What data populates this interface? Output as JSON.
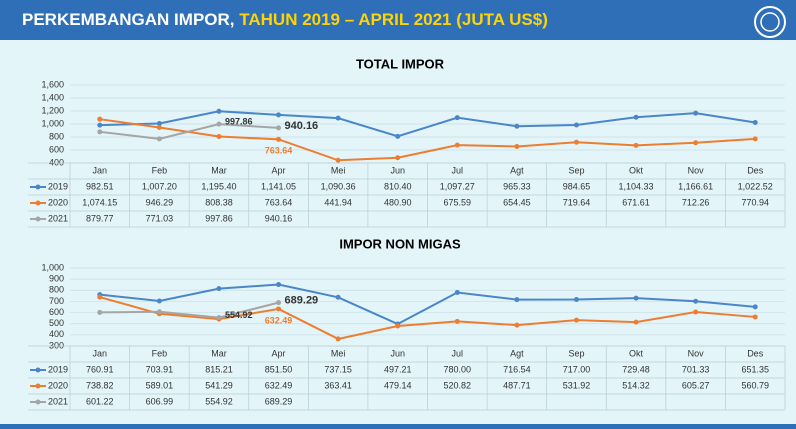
{
  "header": {
    "title_part1": "PERKEMBANGAN IMPOR, ",
    "title_part2": "TAHUN 2019 – APRIL 2021 (JUTA US$)"
  },
  "chart_data": [
    {
      "type": "line",
      "title": "TOTAL IMPOR",
      "categories": [
        "Jan",
        "Feb",
        "Mar",
        "Apr",
        "Mei",
        "Jun",
        "Jul",
        "Agt",
        "Sep",
        "Okt",
        "Nov",
        "Des"
      ],
      "ylim": [
        400,
        1600
      ],
      "yticks": [
        400,
        600,
        800,
        {
          "value": 1000,
          "label": "1,000"
        },
        {
          "value": 1200,
          "label": "1,200"
        },
        {
          "value": 1400,
          "label": "1,400"
        },
        {
          "value": 1600,
          "label": "1,600"
        }
      ],
      "grid": true,
      "series": [
        {
          "name": "2019",
          "color": "#4a86c8",
          "values": [
            982.51,
            1007.2,
            1195.4,
            1141.05,
            1090.36,
            810.4,
            1097.27,
            965.33,
            984.65,
            1104.33,
            1166.61,
            1022.52
          ],
          "value_labels": [
            "982.51",
            "1,007.20",
            "1,195.40",
            "1,141.05",
            "1,090.36",
            "810.40",
            "1,097.27",
            "965.33",
            "984.65",
            "1,104.33",
            "1,166.61",
            "1,022.52"
          ]
        },
        {
          "name": "2020",
          "color": "#ed7d31",
          "values": [
            1074.15,
            946.29,
            808.38,
            763.64,
            441.94,
            480.9,
            675.59,
            654.45,
            719.64,
            671.61,
            712.26,
            770.94
          ],
          "value_labels": [
            "1,074.15",
            "946.29",
            "808.38",
            "763.64",
            "441.94",
            "480.90",
            "675.59",
            "654.45",
            "719.64",
            "671.61",
            "712.26",
            "770.94"
          ],
          "label_points": [
            3
          ]
        },
        {
          "name": "2021",
          "color": "#a5a5a5",
          "values": [
            879.77,
            771.03,
            997.86,
            940.16,
            null,
            null,
            null,
            null,
            null,
            null,
            null,
            null
          ],
          "value_labels": [
            "879.77",
            "771.03",
            "997.86",
            "940.16",
            null,
            null,
            null,
            null,
            null,
            null,
            null,
            null
          ],
          "label_points": [
            2,
            3
          ]
        }
      ]
    },
    {
      "type": "line",
      "title": "IMPOR NON MIGAS",
      "categories": [
        "Jan",
        "Feb",
        "Mar",
        "Apr",
        "Mei",
        "Jun",
        "Jul",
        "Agt",
        "Sep",
        "Okt",
        "Nov",
        "Des"
      ],
      "ylim": [
        300,
        1000
      ],
      "yticks": [
        300,
        400,
        500,
        600,
        700,
        800,
        900,
        {
          "value": 1000,
          "label": "1,000"
        }
      ],
      "grid": true,
      "series": [
        {
          "name": "2019",
          "color": "#4a86c8",
          "values": [
            760.91,
            703.91,
            815.21,
            851.5,
            737.15,
            497.21,
            780,
            716.54,
            717,
            729.48,
            701.33,
            651.35
          ],
          "value_labels": [
            "760.91",
            "703.91",
            "815.21",
            "851.50",
            "737.15",
            "497.21",
            "780.00",
            "716.54",
            "717.00",
            "729.48",
            "701.33",
            "651.35"
          ]
        },
        {
          "name": "2020",
          "color": "#ed7d31",
          "values": [
            738.82,
            589.01,
            541.29,
            632.49,
            363.41,
            479.14,
            520.82,
            487.71,
            531.92,
            514.32,
            605.27,
            560.79
          ],
          "value_labels": [
            "738.82",
            "589.01",
            "541.29",
            "632.49",
            "363.41",
            "479.14",
            "520.82",
            "487.71",
            "531.92",
            "514.32",
            "605.27",
            "560.79"
          ],
          "label_points": [
            3
          ]
        },
        {
          "name": "2021",
          "color": "#a5a5a5",
          "values": [
            601.22,
            606.99,
            554.92,
            689.29,
            null,
            null,
            null,
            null,
            null,
            null,
            null,
            null
          ],
          "value_labels": [
            "601.22",
            "606.99",
            "554.92",
            "689.29",
            null,
            null,
            null,
            null,
            null,
            null,
            null,
            null
          ],
          "label_points": [
            2,
            3
          ]
        }
      ]
    }
  ]
}
